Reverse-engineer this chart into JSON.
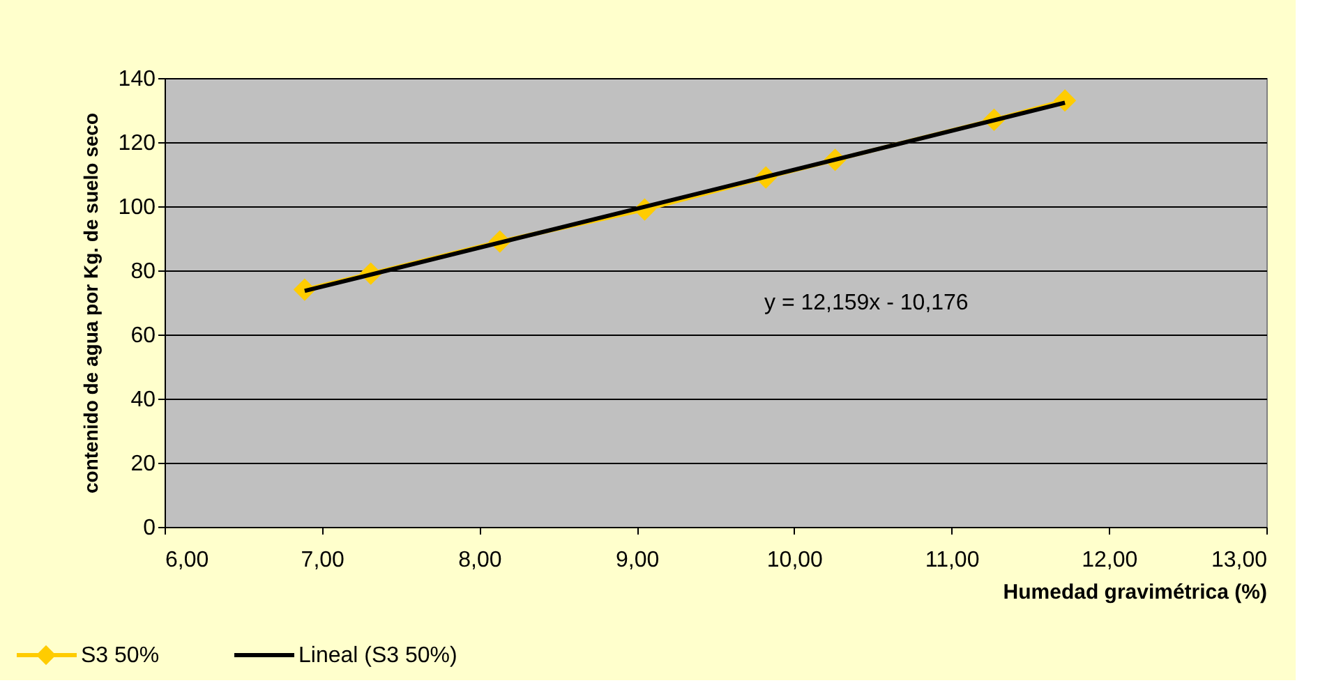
{
  "chart_data": {
    "type": "line",
    "xlabel": "Humedad gravimétrica (%)",
    "ylabel": "contenido de agua por Kg. de suelo seco",
    "series": [
      {
        "name": "S3 50%",
        "color": "#ffcc00",
        "marker": "diamond",
        "x": [
          6.89,
          7.31,
          8.13,
          9.05,
          9.82,
          10.26,
          11.27,
          11.72
        ],
        "values": [
          74,
          79,
          89,
          99,
          109,
          114.5,
          127,
          133
        ]
      },
      {
        "name": "Lineal (S3 50%)",
        "color": "#000000",
        "marker": "none",
        "x": [
          6.89,
          11.72
        ],
        "values": [
          73.6,
          132.3
        ]
      }
    ],
    "xlim": [
      6,
      13
    ],
    "xticks": [
      {
        "value": 6,
        "label": "6,00"
      },
      {
        "value": 7,
        "label": "7,00"
      },
      {
        "value": 8,
        "label": "8,00"
      },
      {
        "value": 9,
        "label": "9,00"
      },
      {
        "value": 10,
        "label": "10,00"
      },
      {
        "value": 11,
        "label": "11,00"
      },
      {
        "value": 12,
        "label": "12,00"
      },
      {
        "value": 13,
        "label": "13,00"
      }
    ],
    "ylim": [
      0,
      140
    ],
    "yticks": [
      0,
      20,
      40,
      60,
      80,
      100,
      120,
      140
    ],
    "grid": "y",
    "legend": "bottom left",
    "annotations": [
      "y = 12,159x - 10,176"
    ]
  }
}
